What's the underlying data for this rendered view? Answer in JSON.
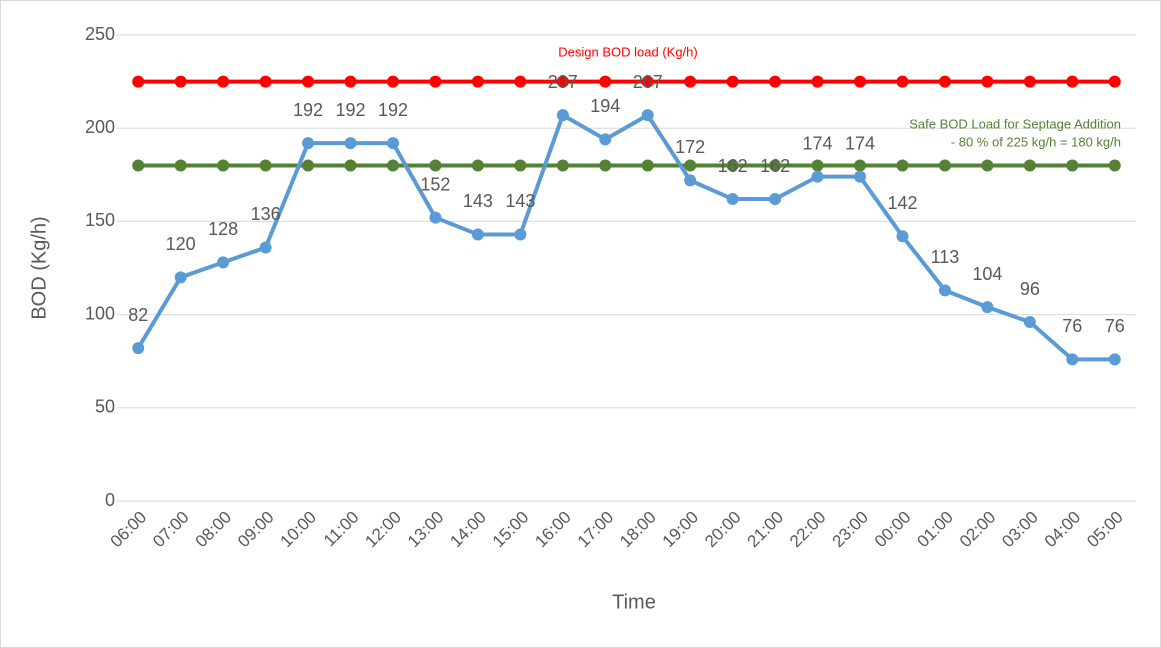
{
  "chart_data": {
    "type": "line",
    "y_label": "BOD (Kg/h)",
    "x_label": "Time",
    "categories": [
      "06:00",
      "07:00",
      "08:00",
      "09:00",
      "10:00",
      "11:00",
      "12:00",
      "13:00",
      "14:00",
      "15:00",
      "16:00",
      "17:00",
      "18:00",
      "19:00",
      "20:00",
      "21:00",
      "22:00",
      "23:00",
      "00:00",
      "01:00",
      "02:00",
      "03:00",
      "04:00",
      "05:00"
    ],
    "series": [
      {
        "color": "#5b9bd5",
        "data_labels": true,
        "values": [
          82,
          120,
          128,
          136,
          192,
          192,
          192,
          152,
          143,
          143,
          207,
          194,
          207,
          172,
          162,
          162,
          174,
          174,
          142,
          113,
          104,
          96,
          76,
          76
        ]
      },
      {
        "color": "#ff0000",
        "data_labels": false,
        "values": [
          225,
          225,
          225,
          225,
          225,
          225,
          225,
          225,
          225,
          225,
          225,
          225,
          225,
          225,
          225,
          225,
          225,
          225,
          225,
          225,
          225,
          225,
          225,
          225
        ]
      },
      {
        "color": "#548235",
        "data_labels": false,
        "values": [
          180,
          180,
          180,
          180,
          180,
          180,
          180,
          180,
          180,
          180,
          180,
          180,
          180,
          180,
          180,
          180,
          180,
          180,
          180,
          180,
          180,
          180,
          180,
          180
        ]
      }
    ],
    "annotations": [
      {
        "text": "Design BOD load (Kg/h)",
        "color": "#ff0000"
      },
      {
        "text": "Safe BOD Load for Septage Addition",
        "color": "#548235"
      },
      {
        "text": "- 80 % of 225 kg/h = 180 kg/h",
        "color": "#548235"
      }
    ],
    "ylim": [
      0,
      250
    ],
    "yticks": [
      0,
      50,
      100,
      150,
      200,
      250
    ],
    "grid": true
  }
}
